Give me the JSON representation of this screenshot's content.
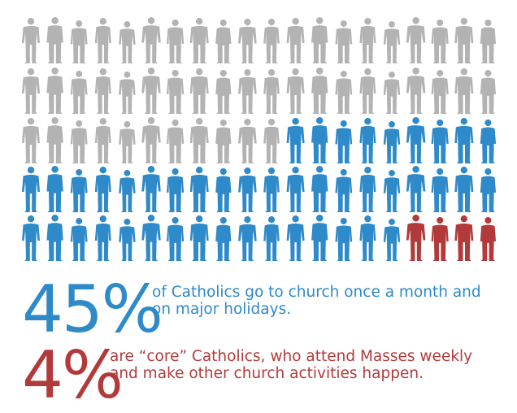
{
  "colors": {
    "other": "#b3b3b3",
    "monthly": "#2e8ac9",
    "core": "#b33a3a"
  },
  "stats": {
    "monthly": {
      "value": "45%",
      "line1": "of Catholics go to church once a month and",
      "line2": "on major holidays."
    },
    "core": {
      "value": "4%",
      "line1": "are “core” Catholics, who attend Masses weekly",
      "line2": "and make other church activities happen."
    }
  },
  "chart_data": {
    "type": "pictograph",
    "total_figures": 100,
    "rows": 5,
    "columns": 20,
    "series": [
      {
        "name": "",
        "count": 51,
        "color": "#b3b3b3"
      },
      {
        "name": "of Catholics go to church once a month and on major holidays",
        "count": 45,
        "color": "#2e8ac9"
      },
      {
        "name": "are “core” Catholics, who attend Masses weekly and make other church activities happen",
        "count": 4,
        "color": "#b33a3a"
      }
    ]
  }
}
